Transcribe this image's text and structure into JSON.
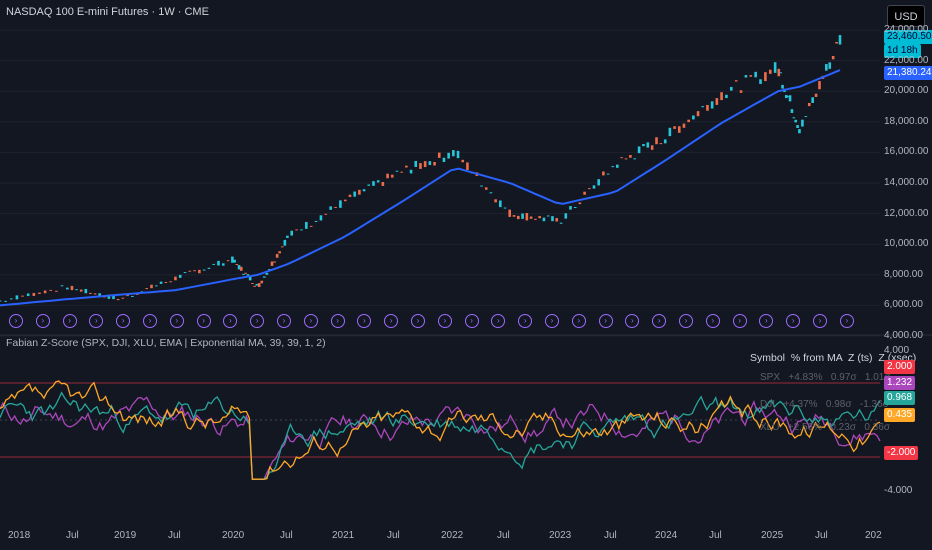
{
  "header": {
    "title": "NASDAQ 100 E-mini Futures · 1W · CME",
    "currency": "USD"
  },
  "price_axis": {
    "ticks": [
      "24,000.00",
      "22,000.00",
      "20,000.00",
      "18,000.00",
      "16,000.00",
      "14,000.00",
      "12,000.00",
      "10,000.00",
      "8,000.00",
      "6,000.00",
      "4,000.00"
    ],
    "last_price": "23,460.50",
    "countdown": "1d 18h",
    "ma_value": "21,380.243",
    "last_color": "#00bcd4",
    "ma_color": "#2962ff"
  },
  "oscillator": {
    "title": "Fabian Z-Score (SPX, DJI, XLU, EMA | Exponential MA, 39, 39, 1, 2)",
    "ticks": [
      "4.000",
      "-4.000"
    ],
    "upper_level": "2.000",
    "lower_level": "-2.000",
    "values": {
      "purple": "1.232",
      "teal": "0.968",
      "orange": "0.435"
    },
    "colors": {
      "purple": "#ab47bc",
      "teal": "#26a69a",
      "orange": "#ffa726",
      "level": "#f23645"
    },
    "table": {
      "headers": [
        "Symbol",
        "% from MA",
        "Z (ts)",
        "Z (xsec)"
      ],
      "rows": [
        {
          "symbol": "SPX",
          "pct": "+4.83%",
          "zts": "0.97σ",
          "zx": "1.01σ"
        },
        {
          "symbol": "DJI",
          "pct": "+4.37%",
          "zts": "0.98σ",
          "zx": "-1.36σ"
        },
        {
          "symbol": "XLU",
          "pct": "+2.56%",
          "zts": "0.23σ",
          "zx": "0.36σ"
        }
      ]
    }
  },
  "time_axis": {
    "ticks": [
      "2018",
      "Jul",
      "2019",
      "Jul",
      "2020",
      "Jul",
      "2021",
      "Jul",
      "2022",
      "Jul",
      "2023",
      "Jul",
      "2024",
      "Jul",
      "2025",
      "Jul",
      "202"
    ]
  },
  "chart_data": {
    "type": "line",
    "title": "NASDAQ 100 E-mini Futures · 1W · CME",
    "x": [
      "2018",
      "2018.5",
      "2019",
      "2019.5",
      "2020",
      "2020.25",
      "2020.5",
      "2021",
      "2021.5",
      "2022",
      "2022.5",
      "2023",
      "2023.5",
      "2024",
      "2024.5",
      "2025",
      "2025.3",
      "2025.6"
    ],
    "series": [
      {
        "values": [
          6300,
          7200,
          6400,
          7800,
          9000,
          7200,
          10500,
          12800,
          14700,
          16000,
          12000,
          11500,
          15200,
          17000,
          19800,
          21500,
          17500,
          23400
        ]
      },
      {
        "values": [
          6000,
          6400,
          6700,
          7000,
          7700,
          8000,
          8700,
          10500,
          12700,
          15000,
          14000,
          12600,
          13400,
          15500,
          17900,
          20000,
          20300,
          21380
        ]
      }
    ],
    "ylim": [
      4000,
      24000
    ]
  }
}
